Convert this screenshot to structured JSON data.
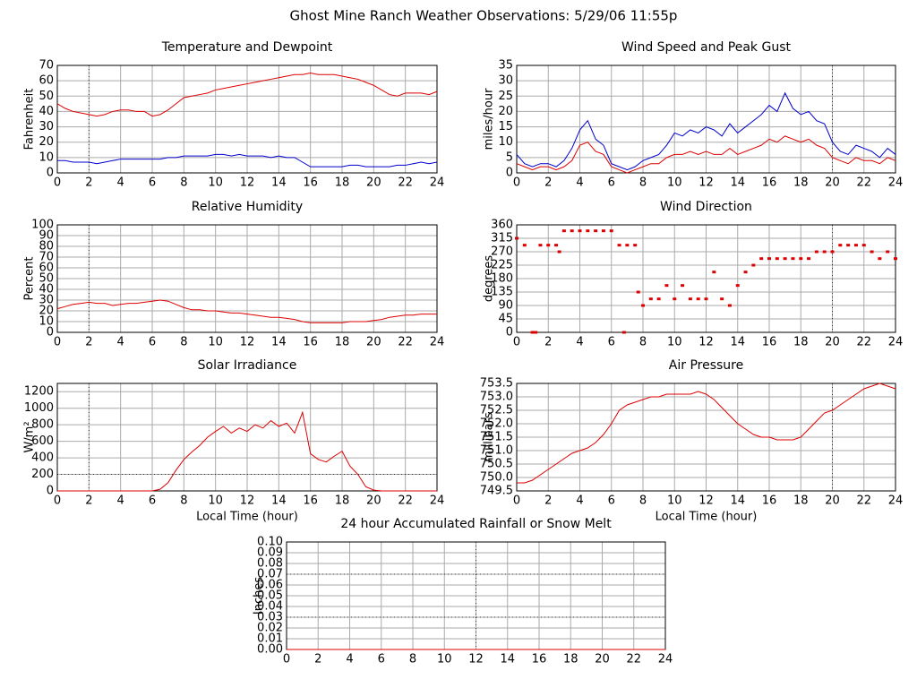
{
  "title": "Ghost Mine Ranch Weather Observations: 5/29/06 11:55p",
  "chart_data": [
    {
      "type": "line",
      "title": "Temperature and Dewpoint",
      "ylabel": "Fahrenheit",
      "x": [
        0,
        0.5,
        1,
        1.5,
        2,
        2.5,
        3,
        3.5,
        4,
        4.5,
        5,
        5.5,
        6,
        6.5,
        7,
        7.5,
        8,
        8.5,
        9,
        9.5,
        10,
        10.5,
        11,
        11.5,
        12,
        12.5,
        13,
        13.5,
        14,
        14.5,
        15,
        15.5,
        16,
        16.5,
        17,
        17.5,
        18,
        18.5,
        19,
        19.5,
        20,
        20.5,
        21,
        21.5,
        22,
        22.5,
        23,
        23.5,
        24
      ],
      "series": [
        {
          "color": "#dd0000",
          "values": [
            45,
            42,
            40,
            39,
            38,
            37,
            38,
            40,
            41,
            41,
            40,
            40,
            37,
            38,
            41,
            45,
            49,
            50,
            51,
            52,
            54,
            55,
            56,
            57,
            58,
            59,
            60,
            61,
            62,
            63,
            64,
            64,
            65,
            64,
            64,
            64,
            63,
            62,
            61,
            59,
            57,
            54,
            51,
            50,
            52,
            52,
            52,
            51,
            53
          ]
        },
        {
          "color": "#0000cc",
          "values": [
            8,
            8,
            7,
            7,
            7,
            6,
            7,
            8,
            9,
            9,
            9,
            9,
            9,
            9,
            10,
            10,
            11,
            11,
            11,
            11,
            12,
            12,
            11,
            12,
            11,
            11,
            11,
            10,
            11,
            10,
            10,
            7,
            4,
            4,
            4,
            4,
            4,
            5,
            5,
            4,
            4,
            4,
            4,
            5,
            5,
            6,
            7,
            6,
            7
          ]
        }
      ],
      "xlim": [
        0,
        24
      ],
      "xticks": [
        0,
        2,
        4,
        6,
        8,
        10,
        12,
        14,
        16,
        18,
        20,
        22,
        24
      ],
      "ylim": [
        0,
        70
      ],
      "yticks": [
        0,
        10,
        20,
        30,
        40,
        50,
        60,
        70
      ],
      "grid": true,
      "ref_x": [
        2
      ]
    },
    {
      "type": "line",
      "title": "Wind Speed and Peak Gust",
      "ylabel": "miles/hour",
      "x": [
        0,
        0.5,
        1,
        1.5,
        2,
        2.5,
        3,
        3.5,
        4,
        4.5,
        5,
        5.5,
        6,
        6.5,
        7,
        7.5,
        8,
        8.5,
        9,
        9.5,
        10,
        10.5,
        11,
        11.5,
        12,
        12.5,
        13,
        13.5,
        14,
        14.5,
        15,
        15.5,
        16,
        16.5,
        17,
        17.5,
        18,
        18.5,
        19,
        19.5,
        20,
        20.5,
        21,
        21.5,
        22,
        22.5,
        23,
        23.5,
        24
      ],
      "series": [
        {
          "color": "#0000cc",
          "values": [
            6,
            3,
            2,
            3,
            3,
            2,
            4,
            8,
            14,
            17,
            11,
            9,
            3,
            2,
            1,
            2,
            4,
            5,
            6,
            9,
            13,
            12,
            14,
            13,
            15,
            14,
            12,
            16,
            13,
            15,
            17,
            19,
            22,
            20,
            26,
            21,
            19,
            20,
            17,
            16,
            10,
            7,
            6,
            9,
            8,
            7,
            5,
            8,
            6
          ]
        },
        {
          "color": "#dd0000",
          "values": [
            3,
            2,
            1,
            2,
            2,
            1,
            2,
            4,
            9,
            10,
            7,
            6,
            2,
            1,
            0,
            1,
            2,
            3,
            3,
            5,
            6,
            6,
            7,
            6,
            7,
            6,
            6,
            8,
            6,
            7,
            8,
            9,
            11,
            10,
            12,
            11,
            10,
            11,
            9,
            8,
            5,
            4,
            3,
            5,
            4,
            4,
            3,
            5,
            4
          ]
        }
      ],
      "xlim": [
        0,
        24
      ],
      "xticks": [
        0,
        2,
        4,
        6,
        8,
        10,
        12,
        14,
        16,
        18,
        20,
        22,
        24
      ],
      "ylim": [
        0,
        35
      ],
      "yticks": [
        0,
        5,
        10,
        15,
        20,
        25,
        30,
        35
      ],
      "grid": true,
      "ref_x": [
        20
      ]
    },
    {
      "type": "line",
      "title": "Relative Humidity",
      "ylabel": "Percent",
      "x": [
        0,
        0.5,
        1,
        1.5,
        2,
        2.5,
        3,
        3.5,
        4,
        4.5,
        5,
        5.5,
        6,
        6.5,
        7,
        7.5,
        8,
        8.5,
        9,
        9.5,
        10,
        10.5,
        11,
        11.5,
        12,
        12.5,
        13,
        13.5,
        14,
        14.5,
        15,
        15.5,
        16,
        16.5,
        17,
        17.5,
        18,
        18.5,
        19,
        19.5,
        20,
        20.5,
        21,
        21.5,
        22,
        22.5,
        23,
        23.5,
        24
      ],
      "series": [
        {
          "color": "#dd0000",
          "values": [
            22,
            24,
            26,
            27,
            28,
            27,
            27,
            25,
            26,
            27,
            27,
            28,
            29,
            30,
            29,
            26,
            23,
            21,
            21,
            20,
            20,
            19,
            18,
            18,
            17,
            16,
            15,
            14,
            14,
            13,
            12,
            10,
            9,
            9,
            9,
            9,
            9,
            10,
            10,
            10,
            11,
            12,
            14,
            15,
            16,
            16,
            17,
            17,
            17
          ]
        }
      ],
      "xlim": [
        0,
        24
      ],
      "xticks": [
        0,
        2,
        4,
        6,
        8,
        10,
        12,
        14,
        16,
        18,
        20,
        22,
        24
      ],
      "ylim": [
        0,
        100
      ],
      "yticks": [
        0,
        10,
        20,
        30,
        40,
        50,
        60,
        70,
        80,
        90,
        100
      ],
      "grid": true,
      "ref_x": [
        2
      ]
    },
    {
      "type": "scatter",
      "title": "Wind Direction",
      "ylabel": "degrees",
      "x": [
        0,
        0.5,
        1,
        1.2,
        1.5,
        2,
        2.5,
        2.7,
        3,
        3.5,
        4,
        4.5,
        5,
        5.5,
        6,
        6.5,
        6.8,
        7,
        7.5,
        7.7,
        8,
        8.5,
        9,
        9.5,
        10,
        10.5,
        11,
        11.5,
        12,
        12.5,
        13,
        13.5,
        14,
        14.5,
        15,
        15.5,
        16,
        16.5,
        17,
        17.5,
        18,
        18.5,
        19,
        19.5,
        20,
        20.5,
        21,
        21.5,
        22,
        22.5,
        23,
        23.5,
        24
      ],
      "series": [
        {
          "color": "#dd0000",
          "values": [
            315,
            292,
            0,
            0,
            292,
            292,
            292,
            270,
            340,
            340,
            340,
            340,
            340,
            340,
            340,
            292,
            0,
            292,
            292,
            135,
            90,
            112,
            112,
            157,
            112,
            157,
            112,
            112,
            112,
            202,
            112,
            90,
            157,
            202,
            225,
            247,
            247,
            247,
            247,
            247,
            247,
            247,
            270,
            270,
            270,
            292,
            292,
            292,
            292,
            270,
            247,
            270,
            247
          ]
        }
      ],
      "xlim": [
        0,
        24
      ],
      "xticks": [
        0,
        2,
        4,
        6,
        8,
        10,
        12,
        14,
        16,
        18,
        20,
        22,
        24
      ],
      "ylim": [
        0,
        360
      ],
      "yticks": [
        0,
        45,
        90,
        135,
        180,
        225,
        270,
        315,
        360
      ],
      "grid": true,
      "ref_x": [
        20
      ]
    },
    {
      "type": "line",
      "title": "Solar Irradiance",
      "ylabel": "W/m²",
      "xlabel": "Local Time (hour)",
      "x": [
        0,
        0.5,
        1,
        1.5,
        2,
        2.5,
        3,
        3.5,
        4,
        4.5,
        5,
        5.5,
        6,
        6.5,
        7,
        7.5,
        8,
        8.5,
        9,
        9.5,
        10,
        10.5,
        11,
        11.5,
        12,
        12.5,
        13,
        13.5,
        14,
        14.5,
        15,
        15.5,
        16,
        16.5,
        17,
        17.5,
        18,
        18.5,
        19,
        19.5,
        20,
        20.5,
        21,
        21.5,
        22,
        22.5,
        23,
        23.5,
        24
      ],
      "series": [
        {
          "color": "#dd0000",
          "values": [
            0,
            0,
            0,
            0,
            0,
            0,
            0,
            0,
            0,
            0,
            0,
            0,
            0,
            20,
            100,
            250,
            380,
            470,
            550,
            650,
            720,
            780,
            700,
            760,
            720,
            800,
            760,
            850,
            780,
            820,
            700,
            950,
            450,
            380,
            350,
            420,
            480,
            300,
            200,
            50,
            10,
            0,
            0,
            0,
            0,
            0,
            0,
            0,
            0
          ]
        }
      ],
      "xlim": [
        0,
        24
      ],
      "xticks": [
        0,
        2,
        4,
        6,
        8,
        10,
        12,
        14,
        16,
        18,
        20,
        22,
        24
      ],
      "ylim": [
        0,
        1300
      ],
      "yticks": [
        0,
        200,
        400,
        600,
        800,
        1000,
        1200
      ],
      "grid": true,
      "ref_x": [
        2
      ],
      "ref_y": [
        200
      ]
    },
    {
      "type": "line",
      "title": "Air Pressure",
      "ylabel": "millibars",
      "xlabel": "Local Time (hour)",
      "x": [
        0,
        0.5,
        1,
        1.5,
        2,
        2.5,
        3,
        3.5,
        4,
        4.5,
        5,
        5.5,
        6,
        6.5,
        7,
        7.5,
        8,
        8.5,
        9,
        9.5,
        10,
        10.5,
        11,
        11.5,
        12,
        12.5,
        13,
        13.5,
        14,
        14.5,
        15,
        15.5,
        16,
        16.5,
        17,
        17.5,
        18,
        18.5,
        19,
        19.5,
        20,
        20.5,
        21,
        21.5,
        22,
        22.5,
        23,
        23.5,
        24
      ],
      "series": [
        {
          "color": "#dd0000",
          "values": [
            749.8,
            749.8,
            749.9,
            750.1,
            750.3,
            750.5,
            750.7,
            750.9,
            751.0,
            751.1,
            751.3,
            751.6,
            752.0,
            752.5,
            752.7,
            752.8,
            752.9,
            753.0,
            753.0,
            753.1,
            753.1,
            753.1,
            753.1,
            753.2,
            753.1,
            752.9,
            752.6,
            752.3,
            752.0,
            751.8,
            751.6,
            751.5,
            751.5,
            751.4,
            751.4,
            751.4,
            751.5,
            751.8,
            752.1,
            752.4,
            752.5,
            752.7,
            752.9,
            753.1,
            753.3,
            753.4,
            753.5,
            753.4,
            753.3
          ]
        }
      ],
      "xlim": [
        0,
        24
      ],
      "xticks": [
        0,
        2,
        4,
        6,
        8,
        10,
        12,
        14,
        16,
        18,
        20,
        22,
        24
      ],
      "ylim": [
        749.5,
        753.5
      ],
      "yticks": [
        749.5,
        {
          "value": 750,
          "label": "750.0"
        },
        750.5,
        {
          "value": 751,
          "label": "751.0"
        },
        751.5,
        {
          "value": 752,
          "label": "752.0"
        },
        752.5,
        {
          "value": 753,
          "label": "753.0"
        },
        753.5
      ],
      "grid": true,
      "ref_x": [
        20
      ]
    },
    {
      "type": "line",
      "title": "24 hour Accumulated Rainfall or Snow Melt",
      "ylabel": "Inches",
      "x": [
        0,
        24
      ],
      "series": [
        {
          "color": "#dd0000",
          "values": [
            0,
            0
          ]
        }
      ],
      "xlim": [
        0,
        24
      ],
      "xticks": [
        0,
        2,
        4,
        6,
        8,
        10,
        12,
        14,
        16,
        18,
        20,
        22,
        24
      ],
      "ylim": [
        0,
        0.1
      ],
      "yticks": [
        {
          "value": 0,
          "label": "0.00"
        },
        0.01,
        0.02,
        0.03,
        0.04,
        0.05,
        0.06,
        0.07,
        0.08,
        0.09,
        {
          "value": 0.1,
          "label": "0.10"
        }
      ],
      "grid": true,
      "ref_x": [
        12
      ],
      "ref_y": [
        0.03,
        0.07
      ]
    }
  ]
}
